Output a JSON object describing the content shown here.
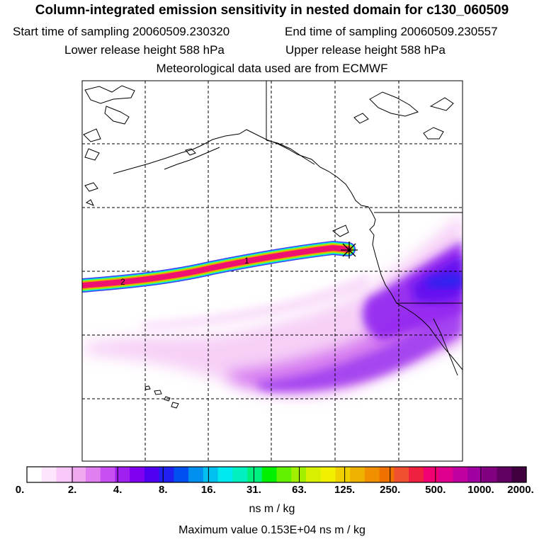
{
  "header": {
    "title": "Column-integrated emission sensitivity in nested domain for c130_060509",
    "start_label": "Start time of sampling 20060509.230320",
    "end_label": "End time of sampling 20060509.230557",
    "lower_label": "Lower release height  588 hPa",
    "upper_label": "Upper release height  588 hPa",
    "met_label": "Meteorological data used are from ECMWF"
  },
  "map": {
    "trajectory_markers": [
      "1",
      "2"
    ],
    "release_marker_icon": "asterisk-icon"
  },
  "colorbar": {
    "labels": [
      "0.",
      "2.",
      "4.",
      "8.",
      "16.",
      "31.",
      "63.",
      "125.",
      "250.",
      "500.",
      "1000.",
      "2000."
    ],
    "colors": [
      "#ffffff",
      "#fde6fd",
      "#f8c8f8",
      "#f0a8f0",
      "#e080f0",
      "#c850f0",
      "#a020f0",
      "#8000f0",
      "#5000f0",
      "#2020f0",
      "#0050f0",
      "#0090f0",
      "#00c0f0",
      "#00e8f0",
      "#00f0c0",
      "#00f080",
      "#00f000",
      "#60f000",
      "#a0f000",
      "#d8f000",
      "#f0f000",
      "#f0d000",
      "#f0b000",
      "#f09000",
      "#f07000",
      "#f05030",
      "#f02040",
      "#f00070",
      "#e00090",
      "#c000a0",
      "#a000a0",
      "#800080",
      "#600060",
      "#400040"
    ],
    "units": "ns m / kg"
  },
  "footer": {
    "max_value": "Maximum value  0.153E+04 ns m / kg"
  }
}
